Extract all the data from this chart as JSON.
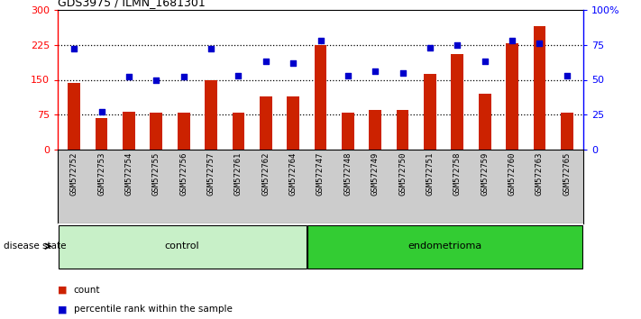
{
  "title": "GDS3975 / ILMN_1681301",
  "samples": [
    "GSM572752",
    "GSM572753",
    "GSM572754",
    "GSM572755",
    "GSM572756",
    "GSM572757",
    "GSM572761",
    "GSM572762",
    "GSM572764",
    "GSM572747",
    "GSM572748",
    "GSM572749",
    "GSM572750",
    "GSM572751",
    "GSM572758",
    "GSM572759",
    "GSM572760",
    "GSM572763",
    "GSM572765"
  ],
  "bar_values": [
    143,
    68,
    82,
    80,
    80,
    150,
    80,
    115,
    115,
    225,
    80,
    85,
    85,
    162,
    205,
    120,
    228,
    265,
    80
  ],
  "dot_values": [
    72,
    27,
    52,
    50,
    52,
    72,
    53,
    63,
    62,
    78,
    53,
    56,
    55,
    73,
    75,
    63,
    78,
    76,
    53
  ],
  "groups": [
    {
      "label": "control",
      "start": 0,
      "end": 9,
      "color": "#c8f0c8"
    },
    {
      "label": "endometrioma",
      "start": 9,
      "end": 19,
      "color": "#33cc33"
    }
  ],
  "bar_color": "#cc2200",
  "dot_color": "#0000cc",
  "left_ylim": [
    0,
    300
  ],
  "right_ylim": [
    0,
    100
  ],
  "left_yticks": [
    0,
    75,
    150,
    225,
    300
  ],
  "right_yticks": [
    0,
    25,
    50,
    75,
    100
  ],
  "right_yticklabels": [
    "0",
    "25",
    "50",
    "75",
    "100%"
  ],
  "hlines": [
    75,
    150,
    225
  ],
  "background_color": "#ffffff",
  "plot_bg": "#ffffff",
  "tick_area_bg": "#cccccc",
  "disease_state_label": "disease state",
  "legend_count": "count",
  "legend_pct": "percentile rank within the sample",
  "title_fontsize": 9,
  "tick_fontsize": 8,
  "label_fontsize": 6.5,
  "group_fontsize": 8,
  "legend_fontsize": 8
}
